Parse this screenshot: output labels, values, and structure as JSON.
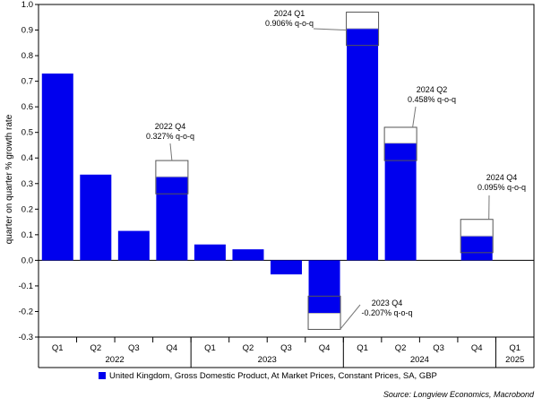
{
  "chart_data": {
    "type": "bar",
    "ylabel": "quarter on quarter % growth rate",
    "ylim": [
      -0.3,
      1.0
    ],
    "yticks": [
      1.0,
      0.9,
      0.8,
      0.7,
      0.6,
      0.5,
      0.4,
      0.3,
      0.2,
      0.1,
      0.0,
      -0.1,
      -0.2,
      -0.3
    ],
    "ytick_labels": [
      "1.0",
      "0.9",
      "0.8",
      "0.7",
      "0.6",
      "0.5",
      "0.4",
      "0.3",
      "0.2",
      "0.1",
      "0.0",
      "-0.1",
      "-0.2",
      "-0.3"
    ],
    "categories": [
      "Q1",
      "Q2",
      "Q3",
      "Q4",
      "Q1",
      "Q2",
      "Q3",
      "Q4",
      "Q1",
      "Q2",
      "Q3",
      "Q4",
      "Q1"
    ],
    "year_groups": [
      {
        "label": "2022",
        "start": 0,
        "end": 3
      },
      {
        "label": "2023",
        "start": 4,
        "end": 7
      },
      {
        "label": "2024",
        "start": 8,
        "end": 11
      },
      {
        "label": "2025",
        "start": 12,
        "end": 12
      }
    ],
    "series": [
      {
        "name": "United Kingdom, Gross Domestic Product, At Market Prices, Constant Prices, SA, GBP",
        "color": "#0000ee",
        "values": [
          0.73,
          0.335,
          0.115,
          0.327,
          0.062,
          0.043,
          -0.055,
          -0.207,
          0.906,
          0.458,
          0.0,
          0.095,
          null
        ]
      }
    ],
    "range_boxes": [
      {
        "index": 3,
        "low": 0.26,
        "high": 0.39
      },
      {
        "index": 7,
        "low": -0.27,
        "high": -0.14
      },
      {
        "index": 8,
        "low": 0.84,
        "high": 0.97
      },
      {
        "index": 9,
        "low": 0.39,
        "high": 0.52
      },
      {
        "index": 11,
        "low": 0.03,
        "high": 0.16
      }
    ],
    "annotations": [
      {
        "line1": "2022 Q4",
        "line2": "0.327% q-o-q",
        "index": 3
      },
      {
        "line1": "2023 Q4",
        "line2": "-0.207% q-o-q",
        "index": 7
      },
      {
        "line1": "2024 Q1",
        "line2": "0.906% q-o-q",
        "index": 8
      },
      {
        "line1": "2024 Q2",
        "line2": "0.458% q-o-q",
        "index": 9
      },
      {
        "line1": "2024 Q4",
        "line2": "0.095% q-o-q",
        "index": 11
      }
    ],
    "legend_position": "bottom",
    "source": "Source: Longview Economics, Macrobond"
  }
}
